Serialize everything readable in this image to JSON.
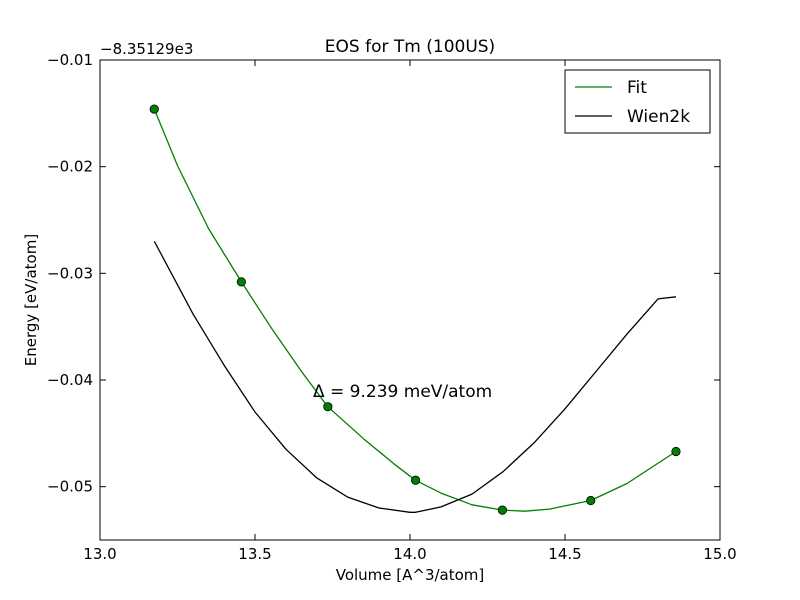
{
  "chart_data": {
    "type": "line",
    "title": "EOS for Tm (100US)",
    "xlabel": "Volume [A^3/atom]",
    "ylabel": "Energy [eV/atom]",
    "y_offset_label": "−8.35129e3",
    "xlim": [
      13.0,
      15.0
    ],
    "ylim": [
      -0.055,
      -0.01
    ],
    "xticks": [
      13.0,
      13.5,
      14.0,
      14.5,
      15.0
    ],
    "xtick_labels": [
      "13.0",
      "13.5",
      "14.0",
      "14.5",
      "15.0"
    ],
    "yticks": [
      -0.01,
      -0.02,
      -0.03,
      -0.04,
      -0.05
    ],
    "ytick_labels": [
      "−0.01",
      "−0.02",
      "−0.03",
      "−0.04",
      "−0.05"
    ],
    "grid": false,
    "legend_position": "top-right",
    "annotation": "Δ = 9.239 meV/atom",
    "series": [
      {
        "name": "Fit",
        "color": "#008000",
        "marker": "circle",
        "points": {
          "x": [
            13.175,
            13.456,
            13.735,
            14.018,
            14.298,
            14.583,
            14.858
          ],
          "y": [
            -0.0146,
            -0.0308,
            -0.0425,
            -0.0494,
            -0.0522,
            -0.0513,
            -0.0467
          ]
        },
        "curve": {
          "x": [
            13.175,
            13.25,
            13.35,
            13.456,
            13.55,
            13.65,
            13.735,
            13.85,
            13.95,
            14.018,
            14.1,
            14.2,
            14.298,
            14.37,
            14.45,
            14.583,
            14.7,
            14.858
          ],
          "y": [
            -0.0146,
            -0.0199,
            -0.0258,
            -0.0308,
            -0.035,
            -0.0392,
            -0.0425,
            -0.0455,
            -0.0479,
            -0.0494,
            -0.0506,
            -0.0517,
            -0.0522,
            -0.0523,
            -0.0521,
            -0.0513,
            -0.0497,
            -0.0467
          ]
        }
      },
      {
        "name": "Wien2k",
        "color": "#000000",
        "curve": {
          "x": [
            13.175,
            13.3,
            13.4,
            13.5,
            13.6,
            13.7,
            13.8,
            13.9,
            14.0,
            14.018,
            14.1,
            14.2,
            14.3,
            14.4,
            14.5,
            14.6,
            14.7,
            14.8,
            14.858
          ],
          "y": [
            -0.027,
            -0.0338,
            -0.0386,
            -0.043,
            -0.0465,
            -0.0492,
            -0.051,
            -0.052,
            -0.0524,
            -0.0524,
            -0.0519,
            -0.0507,
            -0.0486,
            -0.0459,
            -0.0427,
            -0.0392,
            -0.0357,
            -0.0324,
            -0.0322
          ]
        }
      }
    ]
  }
}
